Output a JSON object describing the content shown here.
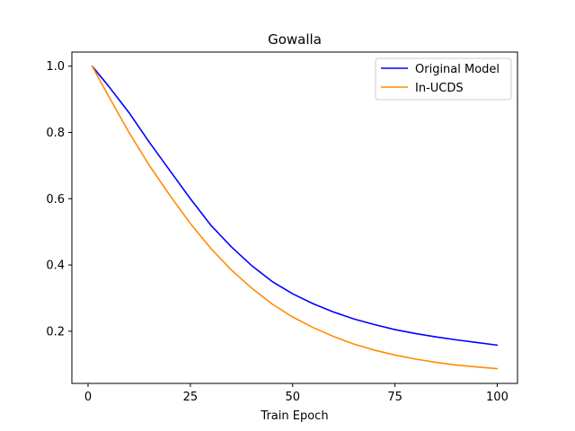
{
  "chart_data": {
    "type": "line",
    "title": "Gowalla",
    "xlabel": "Train Epoch",
    "ylabel": "",
    "xlim": [
      -3.95,
      104.95
    ],
    "ylim": [
      0.0425,
      1.0425
    ],
    "xticks": [
      0,
      25,
      50,
      75,
      100
    ],
    "xtick_labels": [
      "0",
      "25",
      "50",
      "75",
      "100"
    ],
    "yticks": [
      0.2,
      0.4,
      0.6,
      0.8,
      1.0
    ],
    "ytick_labels": [
      "0.2",
      "0.4",
      "0.6",
      "0.8",
      "1.0"
    ],
    "grid": false,
    "legend_position": "top-right",
    "x": [
      1,
      5,
      10,
      15,
      20,
      25,
      30,
      35,
      40,
      45,
      50,
      55,
      60,
      65,
      70,
      75,
      80,
      85,
      90,
      95,
      100
    ],
    "series": [
      {
        "name": "Original Model",
        "color": "#0000ff",
        "values": [
          1.0,
          0.94,
          0.86,
          0.77,
          0.685,
          0.6,
          0.52,
          0.455,
          0.398,
          0.35,
          0.313,
          0.283,
          0.258,
          0.237,
          0.22,
          0.205,
          0.193,
          0.183,
          0.174,
          0.166,
          0.158
        ]
      },
      {
        "name": "In-UCDS",
        "color": "#ff8c00",
        "values": [
          1.0,
          0.91,
          0.8,
          0.7,
          0.61,
          0.525,
          0.45,
          0.385,
          0.33,
          0.282,
          0.243,
          0.211,
          0.184,
          0.161,
          0.143,
          0.128,
          0.116,
          0.106,
          0.098,
          0.092,
          0.087
        ]
      }
    ]
  }
}
